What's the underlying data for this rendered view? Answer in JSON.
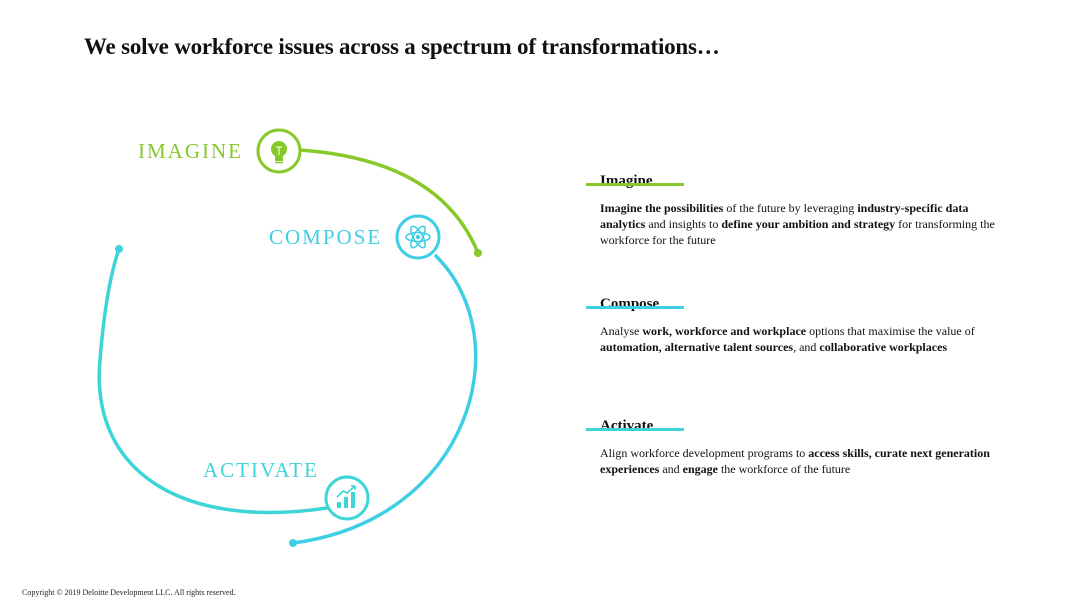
{
  "title": "We solve workforce issues across a spectrum of transformations…",
  "colors": {
    "imagine": "#86c928",
    "compose": "#3fcfe4",
    "activate": "#3dd5d7"
  },
  "stages": {
    "imagine": {
      "label": "IMAGINE",
      "icon": "lightbulb-icon"
    },
    "compose": {
      "label": "COMPOSE",
      "icon": "atom-icon"
    },
    "activate": {
      "label": "ACTIVATE",
      "icon": "growth-chart-icon"
    }
  },
  "sections": {
    "imagine": {
      "heading": "Imagine",
      "body": [
        {
          "b": true,
          "t": "Imagine the possibilities"
        },
        {
          "b": false,
          "t": " of the future by leveraging "
        },
        {
          "b": true,
          "t": "industry-specific data analytics"
        },
        {
          "b": false,
          "t": " and insights to "
        },
        {
          "b": true,
          "t": "define your ambition and strategy"
        },
        {
          "b": false,
          "t": " for transforming the workforce for the future"
        }
      ]
    },
    "compose": {
      "heading": "Compose",
      "body": [
        {
          "b": false,
          "t": "Analyse "
        },
        {
          "b": true,
          "t": "work, workforce and workplace"
        },
        {
          "b": false,
          "t": " options that maximise the value of "
        },
        {
          "b": true,
          "t": "automation, alternative talent sources"
        },
        {
          "b": false,
          "t": ", and "
        },
        {
          "b": true,
          "t": "collaborative workplaces"
        }
      ]
    },
    "activate": {
      "heading": "Activate",
      "body": [
        {
          "b": false,
          "t": "Align workforce development programs to "
        },
        {
          "b": true,
          "t": "access skills, curate next generation experiences"
        },
        {
          "b": false,
          "t": " and "
        },
        {
          "b": true,
          "t": "engage"
        },
        {
          "b": false,
          "t": " the workforce of the future"
        }
      ]
    }
  },
  "footer": "Copyright © 2019 Deloitte Development LLC. All rights reserved."
}
